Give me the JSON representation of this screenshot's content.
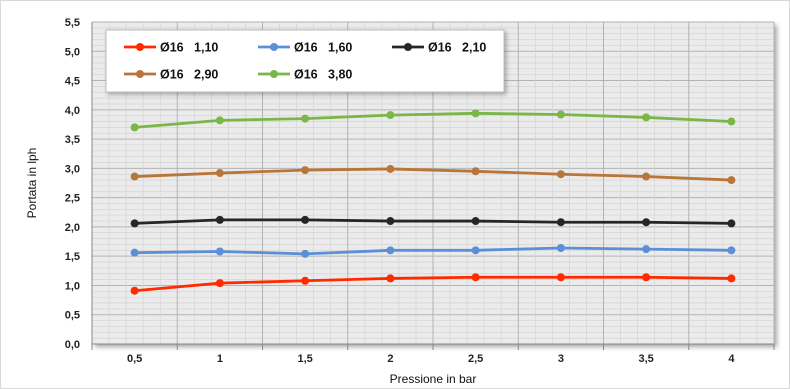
{
  "chart_data": {
    "type": "line",
    "xlabel": "Pressione in bar",
    "ylabel": "Portata in lph",
    "x": [
      "0,5",
      "1",
      "1,5",
      "2",
      "2,5",
      "3",
      "3,5",
      "4"
    ],
    "ylim": [
      0,
      5.5
    ],
    "yticks": [
      "0,0",
      "0,5",
      "1,0",
      "1,5",
      "2,0",
      "2,5",
      "3,0",
      "3,5",
      "4,0",
      "4,5",
      "5,0",
      "5,5"
    ],
    "grid": true,
    "legend_position": "top-left",
    "series": [
      {
        "name": "Ø16   1,10",
        "color": "#ff2a00",
        "values": [
          0.91,
          1.04,
          1.08,
          1.12,
          1.14,
          1.14,
          1.14,
          1.12
        ]
      },
      {
        "name": "Ø16   1,60",
        "color": "#5b8fd6",
        "values": [
          1.56,
          1.58,
          1.54,
          1.6,
          1.6,
          1.64,
          1.62,
          1.6
        ]
      },
      {
        "name": "Ø16   2,10",
        "color": "#262626",
        "values": [
          2.06,
          2.12,
          2.12,
          2.1,
          2.1,
          2.08,
          2.08,
          2.06
        ]
      },
      {
        "name": "Ø16   2,90",
        "color": "#b8763a",
        "values": [
          2.86,
          2.92,
          2.97,
          2.99,
          2.95,
          2.9,
          2.86,
          2.8
        ]
      },
      {
        "name": "Ø16   3,80",
        "color": "#7ab648",
        "values": [
          3.7,
          3.82,
          3.85,
          3.91,
          3.94,
          3.92,
          3.87,
          3.8
        ]
      }
    ]
  }
}
